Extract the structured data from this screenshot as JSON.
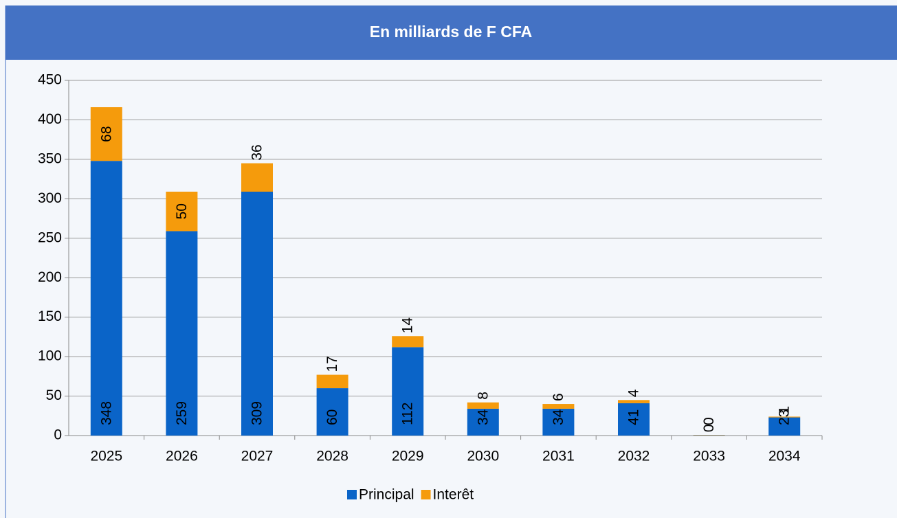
{
  "chart_data": {
    "type": "stacked_bar",
    "title": "En milliards de F CFA",
    "categories": [
      "2025",
      "2026",
      "2027",
      "2028",
      "2029",
      "2030",
      "2031",
      "2032",
      "2033",
      "2034"
    ],
    "series": [
      {
        "name": "Principal",
        "color": "#0a64c8",
        "values": [
          348,
          259,
          309,
          60,
          112,
          34,
          34,
          41,
          0.4,
          23
        ],
        "value_labels": [
          "348",
          "259",
          "309",
          "60",
          "112",
          "34",
          "34",
          "41",
          "0",
          "23"
        ]
      },
      {
        "name": "Interêt",
        "color": "#f59b0c",
        "values": [
          68,
          50,
          36,
          17,
          14,
          8,
          6,
          4,
          0.4,
          1
        ],
        "value_labels": [
          "68",
          "50",
          "36",
          "17",
          "14",
          "8",
          "6",
          "4",
          "0",
          "1"
        ]
      }
    ],
    "ylim": [
      0,
      450
    ],
    "yticks": [
      0,
      50,
      100,
      150,
      200,
      250,
      300,
      350,
      400,
      450
    ],
    "grid": true,
    "legend": "bottom"
  }
}
